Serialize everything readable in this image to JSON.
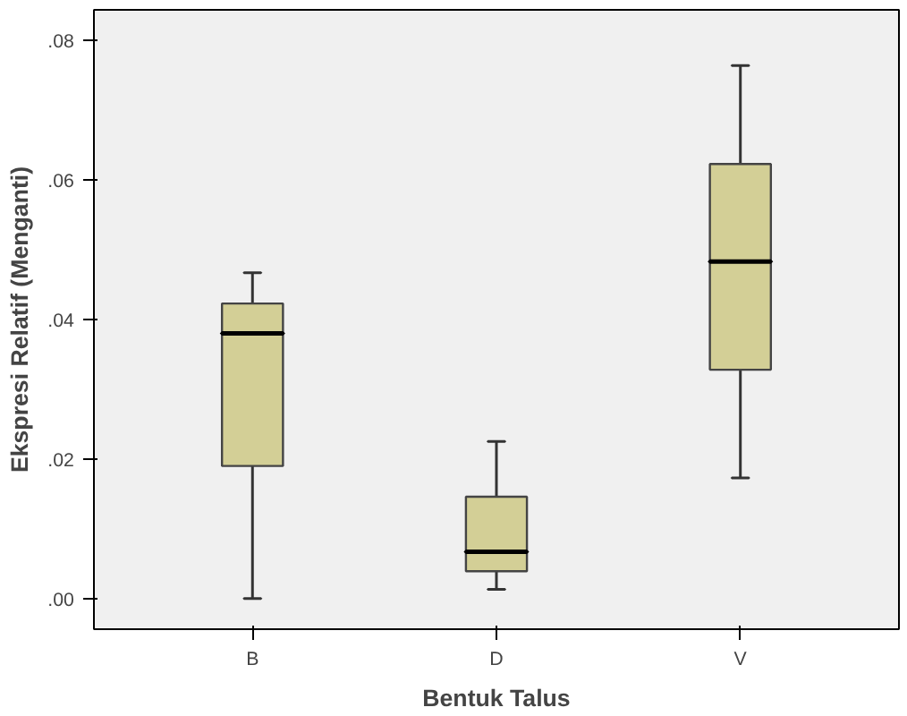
{
  "chart_data": {
    "type": "box",
    "xlabel": "Bentuk Talus",
    "ylabel": "Ekspresi Relatif (Menganti)",
    "categories": [
      "B",
      "D",
      "V"
    ],
    "color": "#d3cf96",
    "boxes": [
      {
        "low": 0.0,
        "q1": 0.019,
        "median": 0.038,
        "q3": 0.0423,
        "high": 0.0467
      },
      {
        "low": 0.0013,
        "q1": 0.0039,
        "median": 0.0067,
        "q3": 0.0146,
        "high": 0.0225
      },
      {
        "low": 0.0173,
        "q1": 0.0328,
        "median": 0.0483,
        "q3": 0.0623,
        "high": 0.0764
      }
    ],
    "ylim": [
      -0.0044,
      0.0844
    ],
    "yticks": [
      {
        "value": 0,
        "label": ".00"
      },
      {
        "value": 0.02,
        "label": ".02"
      },
      {
        "value": 0.04,
        "label": ".04"
      },
      {
        "value": 0.06,
        "label": ".06"
      },
      {
        "value": 0.08,
        "label": ".08"
      }
    ],
    "grid": false
  }
}
